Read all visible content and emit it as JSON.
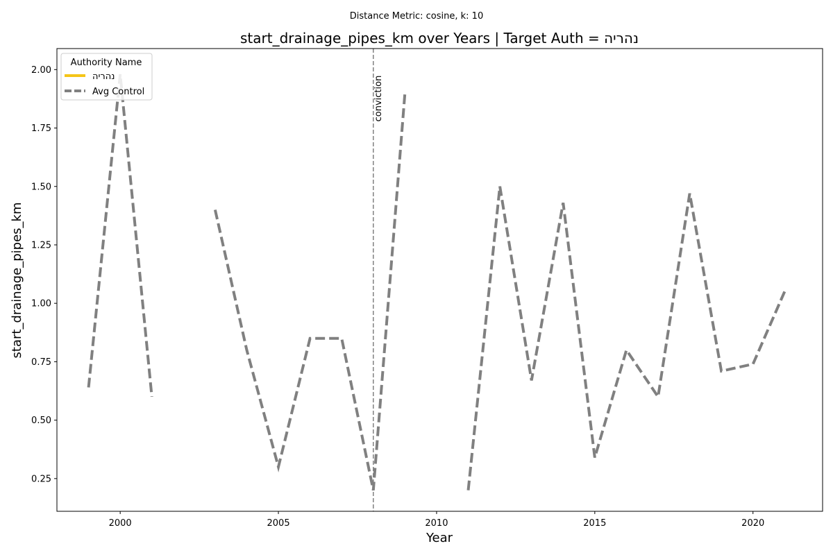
{
  "chart_data": {
    "type": "line",
    "suptitle": "Distance Metric: cosine, k: 10",
    "title": "start_drainage_pipes_km over Years | Target Auth = נהריה",
    "xlabel": "Year",
    "ylabel": "start_drainage_pipes_km",
    "xlim": [
      1998,
      2022.2
    ],
    "ylim": [
      0.11,
      2.09
    ],
    "xticks": [
      2000,
      2005,
      2010,
      2015,
      2020
    ],
    "yticks": [
      0.25,
      0.5,
      0.75,
      1.0,
      1.25,
      1.5,
      1.75,
      2.0
    ],
    "ytick_labels": [
      "0.25",
      "0.50",
      "0.75",
      "1.00",
      "1.25",
      "1.50",
      "1.75",
      "2.00"
    ],
    "grid": false,
    "legend": {
      "title": "Authority Name",
      "position": "top-left",
      "entries": [
        {
          "label": "נהריה",
          "color": "#f5c518",
          "style": "solid"
        },
        {
          "label": "Avg Control",
          "color": "#808080",
          "style": "dashed"
        }
      ]
    },
    "series": [
      {
        "name": "נהריה",
        "color": "#f5c518",
        "x": [],
        "y": []
      },
      {
        "name": "Avg Control",
        "color": "#808080",
        "x": [
          1999,
          2000,
          2001,
          2002,
          2003,
          2004,
          2005,
          2006,
          2007,
          2008,
          2009,
          2010,
          2011,
          2012,
          2013,
          2014,
          2015,
          2016,
          2017,
          2018,
          2019,
          2020,
          2021
        ],
        "y": [
          0.64,
          1.98,
          0.6,
          null,
          1.4,
          0.8,
          0.3,
          0.85,
          0.85,
          0.2,
          1.9,
          null,
          0.2,
          1.5,
          0.67,
          1.43,
          0.34,
          0.8,
          0.6,
          1.47,
          0.71,
          0.74,
          1.05
        ]
      }
    ],
    "annotations": [
      {
        "type": "vline",
        "x": 2008,
        "label": "conviction",
        "color": "#808080",
        "style": "dashed"
      }
    ]
  }
}
